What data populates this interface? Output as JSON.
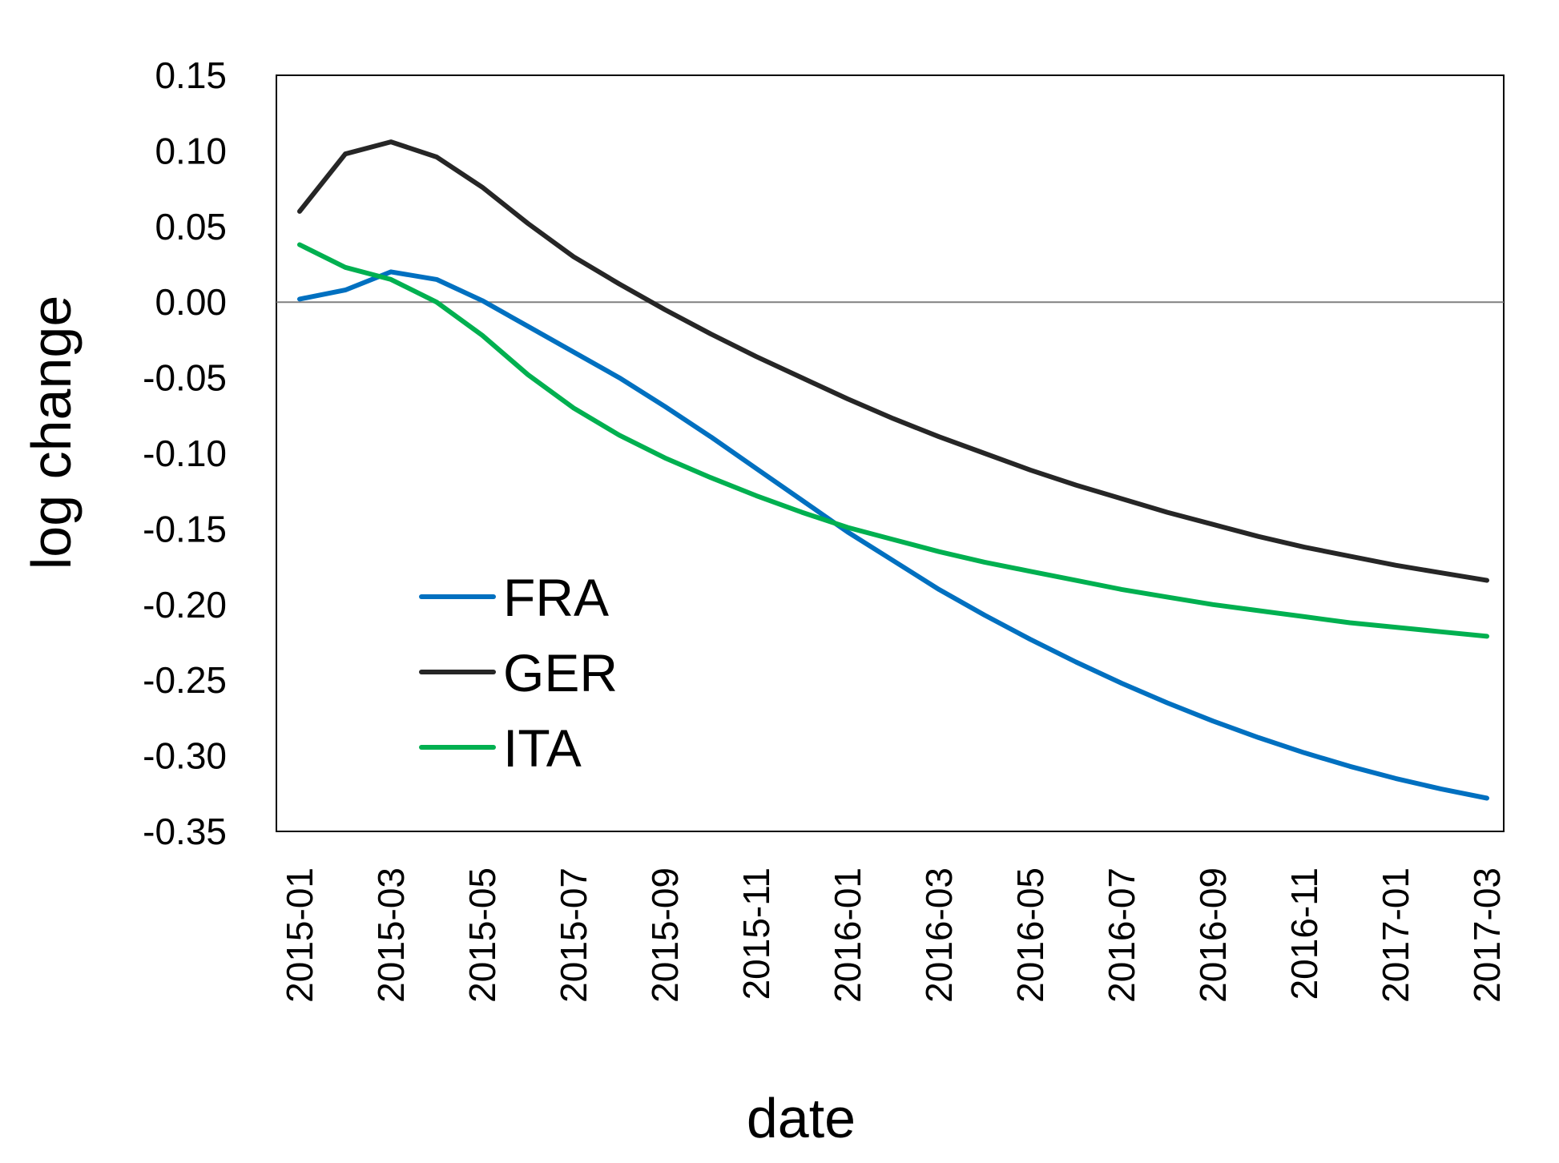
{
  "chart_data": {
    "type": "line",
    "title": "",
    "xlabel": "date",
    "ylabel": "log change",
    "x": [
      "2015-01",
      "2015-02",
      "2015-03",
      "2015-04",
      "2015-05",
      "2015-06",
      "2015-07",
      "2015-08",
      "2015-09",
      "2015-10",
      "2015-11",
      "2015-12",
      "2016-01",
      "2016-02",
      "2016-03",
      "2016-04",
      "2016-05",
      "2016-06",
      "2016-07",
      "2016-08",
      "2016-09",
      "2016-10",
      "2016-11",
      "2016-12",
      "2017-01",
      "2017-02",
      "2017-03"
    ],
    "x_tick_labels": [
      "2015-01",
      "2015-03",
      "2015-05",
      "2015-07",
      "2015-09",
      "2015-11",
      "2016-01",
      "2016-03",
      "2016-05",
      "2016-07",
      "2016-09",
      "2016-11",
      "2017-01",
      "2017-03"
    ],
    "y_tick_labels": [
      "0.15",
      "0.10",
      "0.05",
      "0.00",
      "-0.05",
      "-0.10",
      "-0.15",
      "-0.20",
      "-0.25",
      "-0.30",
      "-0.35"
    ],
    "ylim": [
      -0.35,
      0.15
    ],
    "y_ticks": [
      0.15,
      0.1,
      0.05,
      0.0,
      -0.05,
      -0.1,
      -0.15,
      -0.2,
      -0.25,
      -0.3,
      -0.35
    ],
    "zero_line": true,
    "grid": false,
    "legend_position": "bottom-left",
    "series": [
      {
        "name": "FRA",
        "color": "#0070c0",
        "values": [
          0.002,
          0.008,
          0.02,
          0.015,
          0.001,
          -0.016,
          -0.033,
          -0.05,
          -0.069,
          -0.089,
          -0.11,
          -0.131,
          -0.152,
          -0.171,
          -0.19,
          -0.207,
          -0.223,
          -0.238,
          -0.252,
          -0.265,
          -0.277,
          -0.288,
          -0.298,
          -0.307,
          -0.315,
          -0.322,
          -0.328
        ]
      },
      {
        "name": "GER",
        "color": "#262626",
        "values": [
          0.06,
          0.098,
          0.106,
          0.096,
          0.076,
          0.052,
          0.03,
          0.012,
          -0.005,
          -0.021,
          -0.036,
          -0.05,
          -0.064,
          -0.077,
          -0.089,
          -0.1,
          -0.111,
          -0.121,
          -0.13,
          -0.139,
          -0.147,
          -0.155,
          -0.162,
          -0.168,
          -0.174,
          -0.179,
          -0.184
        ]
      },
      {
        "name": "ITA",
        "color": "#00b050",
        "values": [
          0.038,
          0.023,
          0.015,
          0.0,
          -0.022,
          -0.048,
          -0.07,
          -0.088,
          -0.103,
          -0.116,
          -0.128,
          -0.139,
          -0.149,
          -0.157,
          -0.165,
          -0.172,
          -0.178,
          -0.184,
          -0.19,
          -0.195,
          -0.2,
          -0.204,
          -0.208,
          -0.212,
          -0.215,
          -0.218,
          -0.221
        ]
      }
    ]
  }
}
